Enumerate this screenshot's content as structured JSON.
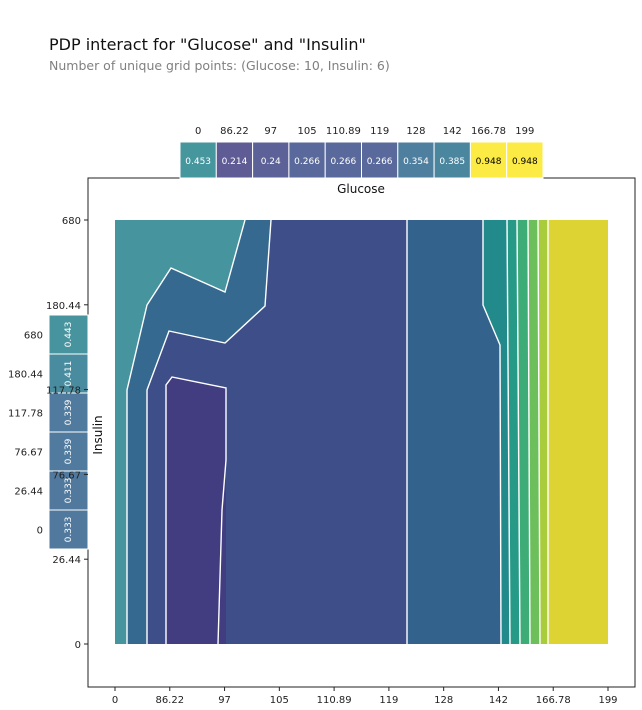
{
  "header": {
    "title": "PDP interact for \"Glucose\" and \"Insulin\"",
    "subtitle": "Number of unique grid points: (Glucose: 10, Insulin: 6)"
  },
  "chart_data": {
    "type": "heatmap",
    "title": "PDP interact for \"Glucose\" and \"Insulin\"",
    "subtitle": "Number of unique grid points: (Glucose: 10, Insulin: 6)",
    "xlabel": "Glucose",
    "ylabel": "Insulin",
    "x_ticks": [
      "0",
      "86.22",
      "97",
      "105",
      "110.89",
      "119",
      "128",
      "142",
      "166.78",
      "199"
    ],
    "y_ticks": [
      "0",
      "26.44",
      "76.67",
      "117.78",
      "180.44",
      "680"
    ],
    "glucose_pdp": {
      "labels": [
        "0",
        "86.22",
        "97",
        "105",
        "110.89",
        "119",
        "128",
        "142",
        "166.78",
        "199"
      ],
      "values": [
        0.453,
        0.214,
        0.24,
        0.266,
        0.266,
        0.266,
        0.354,
        0.385,
        0.948,
        0.948
      ],
      "value_labels": [
        "0.453",
        "0.214",
        "0.24",
        "0.266",
        "0.266",
        "0.266",
        "0.354",
        "0.385",
        "0.948",
        "0.948"
      ]
    },
    "insulin_pdp": {
      "labels": [
        "680",
        "180.44",
        "117.78",
        "76.67",
        "26.44",
        "0"
      ],
      "values": [
        0.443,
        0.411,
        0.339,
        0.339,
        0.333,
        0.333
      ],
      "value_labels": [
        "0.443",
        "0.411",
        "0.339",
        "0.339",
        "0.333",
        "0.333"
      ]
    },
    "contour": {
      "colormap": "viridis",
      "vmin": 0.15,
      "vmax": 0.95,
      "glucose_bands": [
        {
          "from": "0",
          "to": "86.22",
          "value": 0.45
        },
        {
          "from": "86.22",
          "to": "97",
          "value": 0.2
        },
        {
          "from": "97",
          "to": "128",
          "value": 0.26
        },
        {
          "from": "128",
          "to": "142",
          "value": 0.35
        },
        {
          "from": "142",
          "to": "166.78",
          "value": 0.55
        },
        {
          "from": "166.78",
          "to": "199",
          "value": 0.948
        }
      ]
    },
    "colors": {
      "low": "#673174",
      "mid": "#70558F",
      "mid2": "#63709E",
      "teal": "#578CA1",
      "high": "#FDE74C"
    },
    "grid": false
  }
}
